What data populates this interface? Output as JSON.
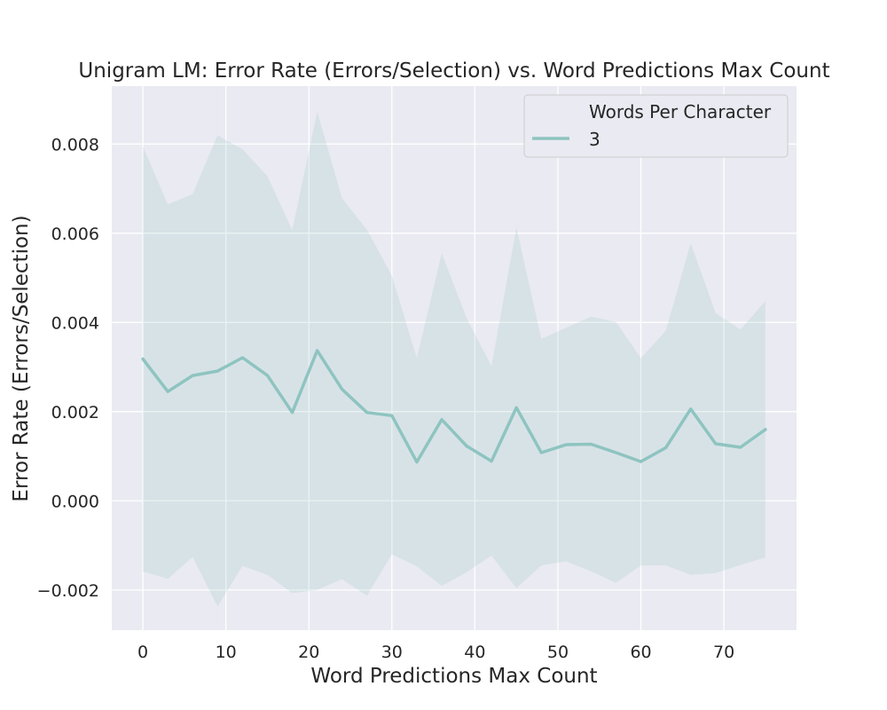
{
  "chart_data": {
    "type": "line",
    "title": "Unigram LM: Error Rate (Errors/Selection) vs. Word Predictions Max Count",
    "xlabel": "Word Predictions Max Count",
    "ylabel": "Error Rate (Errors/Selection)",
    "xlim": [
      -3.75,
      78.75
    ],
    "ylim": [
      -0.0029,
      0.0093
    ],
    "x_ticks": [
      0,
      10,
      20,
      30,
      40,
      50,
      60,
      70
    ],
    "y_ticks": [
      -0.002,
      0.0,
      0.002,
      0.004,
      0.006,
      0.008
    ],
    "x_tick_labels": [
      "0",
      "10",
      "20",
      "30",
      "40",
      "50",
      "60",
      "70"
    ],
    "y_tick_labels": [
      "−0.002",
      "0.000",
      "0.002",
      "0.004",
      "0.006",
      "0.008"
    ],
    "grid": true,
    "legend": {
      "title": "Words Per Character",
      "placement": "top-right",
      "entries": [
        "3"
      ]
    },
    "colors": {
      "line": "#8ec4c0",
      "band": "#8ec4c0",
      "background": "#eaeaf2",
      "grid": "#ffffff"
    },
    "series": [
      {
        "name": "3",
        "x": [
          0,
          3,
          6,
          9,
          12,
          15,
          18,
          21,
          24,
          27,
          30,
          33,
          36,
          39,
          42,
          45,
          48,
          51,
          54,
          57,
          60,
          63,
          66,
          69,
          72,
          75
        ],
        "y": [
          0.00318,
          0.00245,
          0.00281,
          0.00291,
          0.00321,
          0.00281,
          0.00198,
          0.00337,
          0.0025,
          0.00198,
          0.00191,
          0.00087,
          0.00182,
          0.00123,
          0.00089,
          0.00209,
          0.00108,
          0.00126,
          0.00127,
          0.00108,
          0.00088,
          0.00119,
          0.00206,
          0.00128,
          0.0012,
          0.0016
        ],
        "ci_upper": [
          0.00795,
          0.00665,
          0.00688,
          0.0082,
          0.00788,
          0.00728,
          0.00607,
          0.00873,
          0.00678,
          0.00608,
          0.00505,
          0.0032,
          0.00555,
          0.0041,
          0.00302,
          0.00613,
          0.00363,
          0.00388,
          0.00413,
          0.00401,
          0.0032,
          0.00381,
          0.00578,
          0.00421,
          0.00384,
          0.00448
        ],
        "ci_lower": [
          -0.00158,
          -0.00175,
          -0.00126,
          -0.00237,
          -0.00146,
          -0.00166,
          -0.00207,
          -0.002,
          -0.00176,
          -0.00213,
          -0.0012,
          -0.00147,
          -0.00191,
          -0.0016,
          -0.00123,
          -0.00196,
          -0.00145,
          -0.00136,
          -0.00158,
          -0.00184,
          -0.00145,
          -0.00145,
          -0.00166,
          -0.00162,
          -0.00144,
          -0.00127
        ]
      }
    ]
  }
}
